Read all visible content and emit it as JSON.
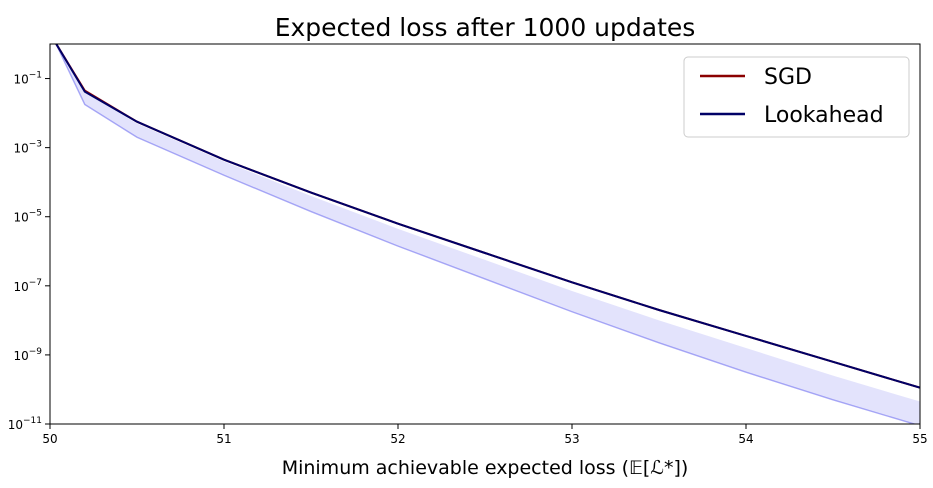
{
  "chart_data": {
    "type": "line",
    "title": "Expected loss after 1000 updates",
    "xlabel": "Minimum achievable expected loss (𝔼[ℒ*])",
    "ylabel": "",
    "xlim": [
      50,
      55
    ],
    "ylim_log10": [
      -11,
      0
    ],
    "yscale": "log",
    "grid": false,
    "legend_position": "top-right",
    "x_ticks": [
      "50",
      "51",
      "52",
      "53",
      "54",
      "55"
    ],
    "y_ticks": [
      {
        "base": "10",
        "exp": "−1",
        "log10": -1
      },
      {
        "base": "10",
        "exp": "−3",
        "log10": -3
      },
      {
        "base": "10",
        "exp": "−5",
        "log10": -5
      },
      {
        "base": "10",
        "exp": "−7",
        "log10": -7
      },
      {
        "base": "10",
        "exp": "−9",
        "log10": -9
      },
      {
        "base": "10",
        "exp": "−11",
        "log10": -11
      }
    ],
    "x": [
      50.03,
      50.2,
      50.5,
      51,
      51.5,
      52,
      52.5,
      53,
      53.5,
      54,
      54.5,
      55
    ],
    "series": [
      {
        "name": "SGD",
        "color": "#8b0000",
        "log10_values": [
          0.05,
          -1.35,
          -2.25,
          -3.35,
          -4.3,
          -5.2,
          -6.05,
          -6.9,
          -7.7,
          -8.45,
          -9.2,
          -9.95
        ]
      },
      {
        "name": "Lookahead",
        "color": "#000066",
        "log10_values": [
          0.05,
          -1.38,
          -2.25,
          -3.35,
          -4.3,
          -5.2,
          -6.05,
          -6.9,
          -7.7,
          -8.45,
          -9.2,
          -9.95
        ]
      }
    ],
    "band": {
      "color": "#6666ee",
      "upper_log10": [
        0.05,
        -1.4,
        -2.3,
        -3.4,
        -4.4,
        -5.35,
        -6.25,
        -7.15,
        -8.0,
        -8.8,
        -9.6,
        -10.35
      ],
      "lower_log10": [
        0.05,
        -1.75,
        -2.7,
        -3.8,
        -4.85,
        -5.85,
        -6.8,
        -7.75,
        -8.65,
        -9.5,
        -10.3,
        -11.05
      ]
    }
  }
}
